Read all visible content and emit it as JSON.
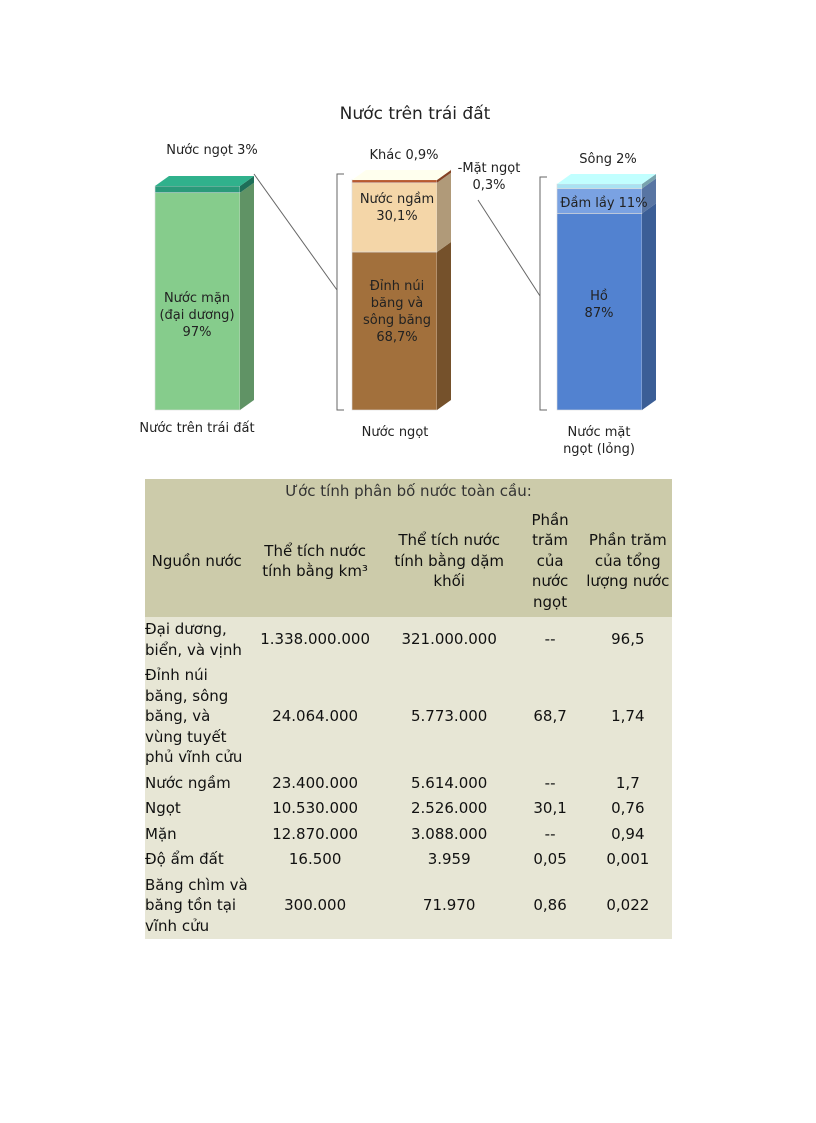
{
  "chart_data": {
    "type": "stacked-bar-3d",
    "title": "Nước trên trái đất",
    "bars": [
      {
        "label": "Nước trên trái đất",
        "segments": [
          {
            "name": "Nước mặn (đại dương)",
            "label": "Nước mặn\n(đại dương)\n97%",
            "value": 97,
            "color": "#86cc8c"
          },
          {
            "name": "Nước ngọt",
            "label": "Nước ngọt 3%",
            "value": 3,
            "color": "#2a9a7a"
          }
        ]
      },
      {
        "label": "Nước ngọt",
        "segments": [
          {
            "name": "Đỉnh núi băng và sông băng",
            "label": "Đỉnh núi\nbăng và\nsông băng\n68,7%",
            "value": 68.7,
            "color": "#a2703c"
          },
          {
            "name": "Nước ngầm",
            "label": "Nước ngầm\n30,1%",
            "value": 30.1,
            "color": "#f4d6a8"
          },
          {
            "name": "Mặt ngọt",
            "label": "-Mặt ngọt\n0,3%",
            "value": 0.3,
            "color": "#b85a30"
          },
          {
            "name": "Khác",
            "label": "Khác 0,9%",
            "value": 0.9,
            "color": "#faebcf"
          }
        ]
      },
      {
        "label": "Nước mặt\nngọt (lỏng)",
        "segments": [
          {
            "name": "Hồ",
            "label": "Hồ\n87%",
            "value": 87,
            "color": "#5282d0"
          },
          {
            "name": "Đầm lầy",
            "label": "Đầm lầy 11%",
            "value": 11,
            "color": "#7aa2e2"
          },
          {
            "name": "Sông",
            "label": "Sông 2%",
            "value": 2,
            "color": "#a8e2f2"
          }
        ]
      }
    ]
  },
  "table": {
    "caption": "Ước tính phân bố nước toàn cầu:",
    "headers": [
      "Nguồn nước",
      "Thể tích nước tính bằng km³",
      "Thể tích nước tính bằng dặm khối",
      "Phần trăm của nước ngọt",
      "Phần trăm của tổng lượng nước"
    ],
    "rows": [
      [
        "Đại dương, biển, và vịnh",
        "1.338.000.000",
        "321.000.000",
        "--",
        "96,5"
      ],
      [
        "Đỉnh núi băng, sông băng, và vùng tuyết phủ vĩnh cửu",
        "24.064.000",
        "5.773.000",
        "68,7",
        "1,74"
      ],
      [
        "Nước ngầm",
        "23.400.000",
        "5.614.000",
        "--",
        "1,7"
      ],
      [
        "Ngọt",
        "10.530.000",
        "2.526.000",
        "30,1",
        "0,76"
      ],
      [
        "Mặn",
        "12.870.000",
        "3.088.000",
        "--",
        "0,94"
      ],
      [
        "Độ ẩm đất",
        "16.500",
        "3.959",
        "0,05",
        "0,001"
      ],
      [
        "Băng chìm và băng tồn tại vĩnh cửu",
        "300.000",
        "71.970",
        "0,86",
        "0,022"
      ]
    ]
  }
}
